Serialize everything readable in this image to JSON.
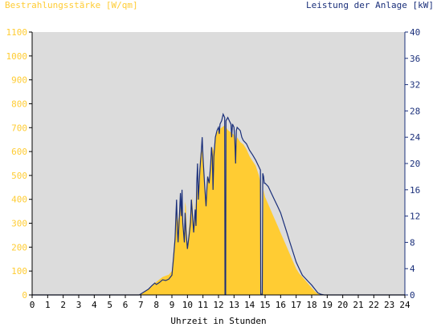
{
  "chart_data": {
    "type": "area",
    "y_left_label": "Bestrahlungsstärke [W/qm]",
    "y_right_label": "Leistung der Anlage [kW]",
    "xlabel": "Uhrzeit in Stunden",
    "xlim": [
      0,
      24
    ],
    "ylim_left": [
      0,
      1100
    ],
    "ylim_right": [
      0,
      40
    ],
    "x_ticks": [
      0,
      1,
      2,
      3,
      4,
      5,
      6,
      7,
      8,
      9,
      10,
      11,
      12,
      13,
      14,
      15,
      16,
      17,
      18,
      19,
      20,
      21,
      22,
      23,
      24
    ],
    "y_left_ticks": [
      0,
      100,
      200,
      300,
      400,
      500,
      600,
      700,
      800,
      900,
      1000,
      1100
    ],
    "y_right_ticks": [
      0,
      4,
      8,
      12,
      16,
      20,
      24,
      28,
      32,
      36,
      40
    ],
    "grid": false,
    "colors": {
      "plot_background": "#dcdcdc",
      "irradiance_fill": "#ffcc33",
      "power_line": "#1a2f7a",
      "left_axis_text": "#ffcc33",
      "right_axis_text": "#1a2f7a",
      "axis_line": "#000000"
    },
    "series": [
      {
        "axis": "left",
        "style": "area",
        "points": [
          [
            6.9,
            0
          ],
          [
            7.1,
            8
          ],
          [
            7.3,
            15
          ],
          [
            7.5,
            25
          ],
          [
            7.7,
            40
          ],
          [
            7.9,
            50
          ],
          [
            8.0,
            55
          ],
          [
            8.2,
            65
          ],
          [
            8.4,
            75
          ],
          [
            8.6,
            80
          ],
          [
            8.8,
            85
          ],
          [
            9.0,
            100
          ],
          [
            9.1,
            180
          ],
          [
            9.2,
            260
          ],
          [
            9.25,
            330
          ],
          [
            9.3,
            390
          ],
          [
            9.35,
            300
          ],
          [
            9.45,
            330
          ],
          [
            9.5,
            380
          ],
          [
            9.6,
            350
          ],
          [
            9.65,
            420
          ],
          [
            9.7,
            300
          ],
          [
            9.8,
            250
          ],
          [
            9.85,
            390
          ],
          [
            9.9,
            370
          ],
          [
            10.0,
            200
          ],
          [
            10.1,
            280
          ],
          [
            10.2,
            350
          ],
          [
            10.3,
            410
          ],
          [
            10.4,
            290
          ],
          [
            10.5,
            390
          ],
          [
            10.55,
            320
          ],
          [
            10.6,
            480
          ],
          [
            10.7,
            380
          ],
          [
            10.8,
            560
          ],
          [
            10.9,
            620
          ],
          [
            11.0,
            580
          ],
          [
            11.1,
            470
          ],
          [
            11.2,
            390
          ],
          [
            11.3,
            500
          ],
          [
            11.4,
            480
          ],
          [
            11.5,
            560
          ],
          [
            11.6,
            620
          ],
          [
            11.7,
            600
          ],
          [
            11.8,
            660
          ],
          [
            11.9,
            680
          ],
          [
            12.0,
            690
          ],
          [
            12.2,
            700
          ],
          [
            12.4,
            710
          ],
          [
            12.45,
            10
          ],
          [
            12.5,
            700
          ],
          [
            12.6,
            690
          ],
          [
            12.8,
            680
          ],
          [
            13.0,
            670
          ],
          [
            13.1,
            620
          ],
          [
            13.2,
            660
          ],
          [
            13.4,
            640
          ],
          [
            13.6,
            630
          ],
          [
            13.8,
            610
          ],
          [
            14.0,
            580
          ],
          [
            14.2,
            560
          ],
          [
            14.4,
            540
          ],
          [
            14.5,
            520
          ],
          [
            14.6,
            500
          ],
          [
            14.7,
            470
          ],
          [
            14.75,
            10
          ],
          [
            14.8,
            10
          ],
          [
            14.9,
            440
          ],
          [
            15.0,
            410
          ],
          [
            15.2,
            380
          ],
          [
            15.4,
            350
          ],
          [
            15.6,
            320
          ],
          [
            15.8,
            290
          ],
          [
            16.0,
            260
          ],
          [
            16.2,
            230
          ],
          [
            16.4,
            200
          ],
          [
            16.6,
            170
          ],
          [
            16.8,
            140
          ],
          [
            17.0,
            110
          ],
          [
            17.2,
            90
          ],
          [
            17.4,
            75
          ],
          [
            17.6,
            60
          ],
          [
            17.8,
            45
          ],
          [
            18.0,
            30
          ],
          [
            18.2,
            15
          ],
          [
            18.4,
            5
          ],
          [
            18.6,
            0
          ]
        ]
      },
      {
        "axis": "right",
        "style": "line",
        "points": [
          [
            0,
            0
          ],
          [
            6.9,
            0
          ],
          [
            7.1,
            0.3
          ],
          [
            7.3,
            0.6
          ],
          [
            7.5,
            0.9
          ],
          [
            7.7,
            1.4
          ],
          [
            7.9,
            1.8
          ],
          [
            8.0,
            1.6
          ],
          [
            8.2,
            1.9
          ],
          [
            8.4,
            2.3
          ],
          [
            8.6,
            2.2
          ],
          [
            8.8,
            2.4
          ],
          [
            9.0,
            3.0
          ],
          [
            9.1,
            5.5
          ],
          [
            9.2,
            8.5
          ],
          [
            9.25,
            11.5
          ],
          [
            9.3,
            14.5
          ],
          [
            9.35,
            10.0
          ],
          [
            9.4,
            8.0
          ],
          [
            9.45,
            10.5
          ],
          [
            9.5,
            13.0
          ],
          [
            9.55,
            15.5
          ],
          [
            9.6,
            12.0
          ],
          [
            9.65,
            16.0
          ],
          [
            9.7,
            11.0
          ],
          [
            9.8,
            8.0
          ],
          [
            9.85,
            12.5
          ],
          [
            9.9,
            10.0
          ],
          [
            10.0,
            7.0
          ],
          [
            10.1,
            9.0
          ],
          [
            10.2,
            11.0
          ],
          [
            10.25,
            14.5
          ],
          [
            10.3,
            13.0
          ],
          [
            10.4,
            9.5
          ],
          [
            10.5,
            13.0
          ],
          [
            10.55,
            10.5
          ],
          [
            10.6,
            17.0
          ],
          [
            10.65,
            20.0
          ],
          [
            10.7,
            14.5
          ],
          [
            10.8,
            19.0
          ],
          [
            10.9,
            22.0
          ],
          [
            10.95,
            24.0
          ],
          [
            11.0,
            21.0
          ],
          [
            11.1,
            17.0
          ],
          [
            11.2,
            13.5
          ],
          [
            11.25,
            16.0
          ],
          [
            11.3,
            18.0
          ],
          [
            11.4,
            17.0
          ],
          [
            11.5,
            20.0
          ],
          [
            11.55,
            22.5
          ],
          [
            11.6,
            21.0
          ],
          [
            11.65,
            16.0
          ],
          [
            11.7,
            21.0
          ],
          [
            11.8,
            24.0
          ],
          [
            11.9,
            25.0
          ],
          [
            12.0,
            25.5
          ],
          [
            12.05,
            24.5
          ],
          [
            12.1,
            26.0
          ],
          [
            12.2,
            26.5
          ],
          [
            12.3,
            27.5
          ],
          [
            12.4,
            27.0
          ],
          [
            12.42,
            0.1
          ],
          [
            12.46,
            0.1
          ],
          [
            12.48,
            26.5
          ],
          [
            12.6,
            27.0
          ],
          [
            12.7,
            26.5
          ],
          [
            12.8,
            26.0
          ],
          [
            12.85,
            24.0
          ],
          [
            12.9,
            26.0
          ],
          [
            13.0,
            25.5
          ],
          [
            13.05,
            23.5
          ],
          [
            13.1,
            20.0
          ],
          [
            13.15,
            25.0
          ],
          [
            13.2,
            25.5
          ],
          [
            13.4,
            25.0
          ],
          [
            13.5,
            24.0
          ],
          [
            13.6,
            23.5
          ],
          [
            13.8,
            23.0
          ],
          [
            14.0,
            22.0
          ],
          [
            14.2,
            21.3
          ],
          [
            14.4,
            20.5
          ],
          [
            14.5,
            20.0
          ],
          [
            14.6,
            19.5
          ],
          [
            14.7,
            19.0
          ],
          [
            14.72,
            0.1
          ],
          [
            14.82,
            0.1
          ],
          [
            14.85,
            18.5
          ],
          [
            14.9,
            18.0
          ],
          [
            14.95,
            17.0
          ],
          [
            15.0,
            17.0
          ],
          [
            15.2,
            16.5
          ],
          [
            15.4,
            15.5
          ],
          [
            15.6,
            14.5
          ],
          [
            15.8,
            13.5
          ],
          [
            16.0,
            12.5
          ],
          [
            16.2,
            11.0
          ],
          [
            16.4,
            9.5
          ],
          [
            16.6,
            8.0
          ],
          [
            16.8,
            6.5
          ],
          [
            17.0,
            5.0
          ],
          [
            17.2,
            4.0
          ],
          [
            17.4,
            3.0
          ],
          [
            17.6,
            2.5
          ],
          [
            17.8,
            2.0
          ],
          [
            18.0,
            1.5
          ],
          [
            18.2,
            0.9
          ],
          [
            18.4,
            0.3
          ],
          [
            18.6,
            0.1
          ],
          [
            18.8,
            0
          ],
          [
            24,
            0
          ]
        ]
      }
    ]
  }
}
